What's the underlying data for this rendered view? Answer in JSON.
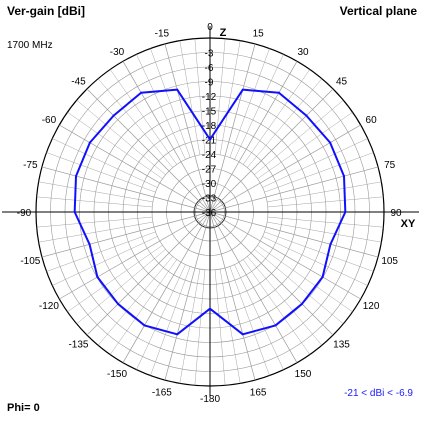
{
  "header": {
    "title_left": "Ver-gain [dBi]",
    "title_right": "Vertical plane",
    "frequency": "1700 MHz",
    "phi": "Phi= 0",
    "gain_range": "-21 < dBi < -6.9"
  },
  "colors": {
    "trace": "#1010ff",
    "grid": "#9a9a9a",
    "range_text": "#1a1aff"
  },
  "chart_data": {
    "type": "polar",
    "title": "Ver-gain [dBi]",
    "subtitle": "Vertical plane",
    "angle_unit": "deg",
    "radial_unit": "dBi",
    "radial_max": 0,
    "radial_min": -36,
    "radial_ticks": [
      -3,
      -6,
      -9,
      -12,
      -15,
      -18,
      -21,
      -24,
      -27,
      -30,
      -33,
      -36
    ],
    "angle_tick_labels": [
      "0",
      "15",
      "30",
      "45",
      "60",
      "75",
      "90",
      "105",
      "120",
      "135",
      "150",
      "165",
      "-180",
      "-165",
      "-150",
      "-135",
      "-120",
      "-105",
      "-90",
      "-75",
      "-60",
      "-45",
      "-30",
      "-15"
    ],
    "axis_labels": {
      "top": "Z",
      "right": "XY"
    },
    "series": [
      {
        "angles": [
          0,
          15,
          30,
          45,
          60,
          75,
          90,
          105,
          120,
          135,
          150,
          165,
          180,
          195,
          210,
          225,
          240,
          255,
          270,
          285,
          300,
          315,
          330,
          345
        ],
        "gain": [
          -21,
          -9.8,
          -7.5,
          -7.8,
          -7.3,
          -7.3,
          -8.0,
          -10.2,
          -9.1,
          -9.1,
          -8.9,
          -9.8,
          -16,
          -9.8,
          -8.9,
          -9.1,
          -9.1,
          -10.2,
          -8.0,
          -7.3,
          -7.3,
          -7.8,
          -7.5,
          -9.8
        ]
      }
    ]
  }
}
